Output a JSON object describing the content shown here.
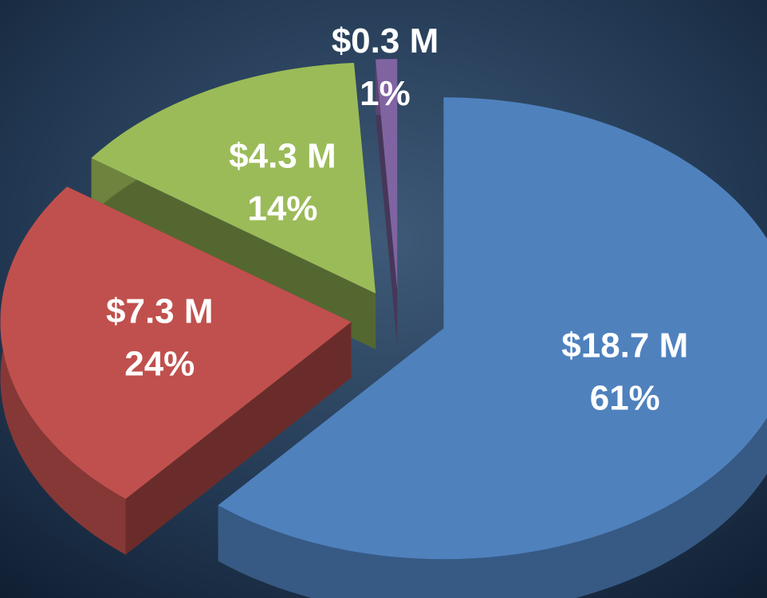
{
  "chart_data": {
    "type": "pie",
    "values": [
      18.7,
      7.3,
      4.3,
      0.3
    ],
    "value_labels": [
      "$18.7 M",
      "$7.3 M",
      "$4.3 M",
      "$0.3 M"
    ],
    "percentages": [
      61,
      24,
      14,
      1
    ],
    "percentage_labels": [
      "61%",
      "24%",
      "14%",
      "1%"
    ],
    "colors": [
      "#4f81bd",
      "#c0504d",
      "#9bbb59",
      "#8064a2"
    ]
  }
}
